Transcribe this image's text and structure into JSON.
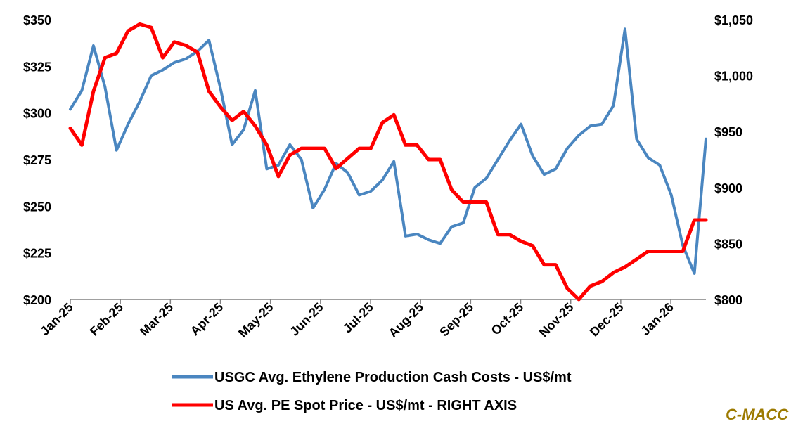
{
  "chart_data": {
    "type": "line",
    "title": "",
    "xlabel": "",
    "ylabel_left": "",
    "ylabel_right": "",
    "x_tick_labels": [
      "Jan-25",
      "Feb-25",
      "Mar-25",
      "Apr-25",
      "May-25",
      "Jun-25",
      "Jul-25",
      "Aug-25",
      "Sep-25",
      "Oct-25",
      "Nov-25",
      "Dec-25",
      "Jan-26"
    ],
    "left_axis": {
      "min": 200,
      "max": 350,
      "ticks": [
        200,
        225,
        250,
        275,
        300,
        325,
        350
      ],
      "tick_labels": [
        "$200",
        "$225",
        "$250",
        "$275",
        "$300",
        "$325",
        "$350"
      ]
    },
    "right_axis": {
      "min": 800,
      "max": 1050,
      "ticks": [
        800,
        850,
        900,
        950,
        1000,
        1050
      ],
      "tick_labels": [
        "$800",
        "$850",
        "$900",
        "$950",
        "$1,000",
        "$1,050"
      ]
    },
    "x_points_per_month": 4.33,
    "grid": false,
    "legend_position": "bottom-center",
    "series": [
      {
        "name": "USGC Avg. Ethylene Production Cash Costs - US$/mt",
        "axis": "left",
        "color": "#4A86C0",
        "values": [
          302,
          312,
          336,
          314,
          280,
          294,
          306,
          320,
          323,
          327,
          329,
          333,
          339,
          313,
          283,
          291,
          312,
          270,
          272,
          283,
          275,
          249,
          259,
          273,
          268,
          256,
          258,
          264,
          274,
          234,
          235,
          232,
          230,
          239,
          241,
          260,
          265,
          275,
          285,
          294,
          277,
          267,
          270,
          281,
          288,
          293,
          294,
          304,
          345,
          286,
          276,
          272,
          256,
          229,
          214,
          286
        ]
      },
      {
        "name": "US Avg. PE Spot Price - US$/mt - RIGHT AXIS",
        "axis": "right",
        "color": "#FF0000",
        "values": [
          953,
          938,
          986,
          1016,
          1020,
          1040,
          1046,
          1043,
          1016,
          1030,
          1027,
          1021,
          986,
          972,
          960,
          968,
          955,
          938,
          910,
          929,
          935,
          935,
          935,
          917,
          926,
          935,
          935,
          958,
          965,
          938,
          938,
          925,
          925,
          898,
          887,
          887,
          887,
          858,
          858,
          852,
          848,
          831,
          831,
          810,
          800,
          812,
          816,
          824,
          829,
          836,
          843,
          843,
          843,
          843,
          871,
          871
        ]
      }
    ]
  },
  "brand": {
    "text": "C-MACC",
    "color": "#9C7A00"
  }
}
